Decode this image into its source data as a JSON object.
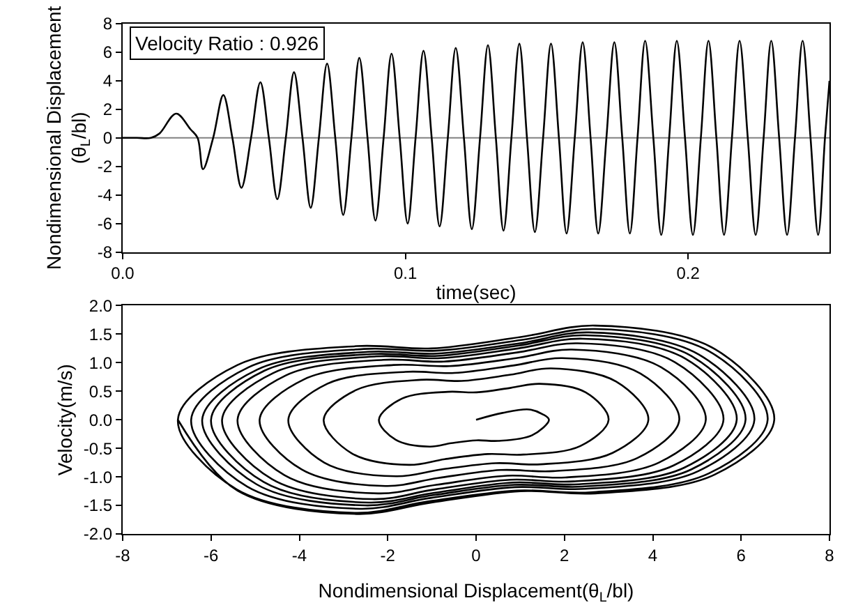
{
  "chart_data": [
    {
      "type": "line",
      "xlabel": "time(sec)",
      "ylabel": "Nondimensional Displacement(θ$_{L}$/bl)",
      "annotations": [
        "Velocity Ratio : 0.926"
      ],
      "xlim": [
        0,
        0.25
      ],
      "xticks": [
        {
          "value": 0,
          "label": "0.0"
        },
        0.1,
        0.2
      ],
      "ylim": [
        -8,
        8
      ],
      "yticks": [
        -8,
        -6,
        -4,
        -2,
        0,
        2,
        4,
        6,
        8
      ],
      "grid": false,
      "marker": "none",
      "line_style": "solid",
      "ref_lines": [
        {
          "axis": "y",
          "value": 0,
          "label": null,
          "color": "#808080"
        }
      ],
      "series": [
        {
          "color": "#000000",
          "x": [
            0,
            0.005,
            0.01,
            0.013,
            0.0189,
            0.024,
            0.0265,
            0.0284,
            0.032,
            0.0356,
            0.0388,
            0.042,
            0.0454,
            0.0487,
            0.0517,
            0.0547,
            0.0577,
            0.0606,
            0.0636,
            0.0665,
            0.0694,
            0.0723,
            0.0752,
            0.078,
            0.0809,
            0.0837,
            0.0866,
            0.0894,
            0.0923,
            0.0951,
            0.098,
            0.1008,
            0.1036,
            0.1064,
            0.1093,
            0.1121,
            0.115,
            0.1178,
            0.1207,
            0.1235,
            0.1264,
            0.1292,
            0.132,
            0.1347,
            0.1375,
            0.1403,
            0.143,
            0.1458,
            0.1487,
            0.1515,
            0.1543,
            0.157,
            0.1599,
            0.1627,
            0.1655,
            0.1682,
            0.1711,
            0.1739,
            0.1767,
            0.1794,
            0.1821,
            0.1848,
            0.1877,
            0.1905,
            0.1933,
            0.196,
            0.1989,
            0.2017,
            0.2045,
            0.2072,
            0.21,
            0.2127,
            0.2155,
            0.2182,
            0.2211,
            0.2239,
            0.2267,
            0.2294,
            0.2322,
            0.235,
            0.2378,
            0.2405,
            0.2433,
            0.246,
            0.2484,
            0.25
          ],
          "values": [
            0,
            0,
            0,
            0.3,
            1.7,
            0.6,
            0,
            -2.2,
            0,
            3.0,
            0,
            -3.5,
            0,
            3.9,
            0,
            -4.3,
            0,
            4.6,
            0,
            -4.9,
            0,
            5.2,
            0,
            -5.4,
            0,
            5.6,
            0,
            -5.8,
            0,
            5.9,
            0,
            -6.0,
            0,
            6.1,
            0,
            -6.2,
            0,
            6.3,
            0,
            -6.4,
            0,
            6.5,
            0,
            -6.5,
            0,
            6.6,
            0,
            -6.6,
            0,
            6.6,
            0,
            -6.7,
            0,
            6.7,
            0,
            -6.7,
            0,
            6.7,
            0,
            -6.7,
            0,
            6.8,
            0,
            -6.8,
            0,
            6.8,
            0,
            -6.8,
            0,
            6.8,
            0,
            -6.8,
            0,
            6.8,
            0,
            -6.8,
            0,
            6.8,
            0,
            -6.8,
            0,
            6.8,
            0,
            -6.8,
            0,
            4.0
          ]
        }
      ]
    },
    {
      "type": "line",
      "xlabel": "Nondimensional Displacement(θ$_{L}$/bl)",
      "ylabel": "Velocity(m/s)",
      "xlim": [
        -8,
        8
      ],
      "xticks": [
        -8,
        -6,
        -4,
        -2,
        0,
        2,
        4,
        6,
        8
      ],
      "ylim": [
        -2,
        2
      ],
      "yticks": [
        {
          "value": -2,
          "label": "-2.0"
        },
        -1.5,
        {
          "value": -1,
          "label": "-1.0"
        },
        -0.5,
        {
          "value": 0,
          "label": "0.0"
        },
        0.5,
        {
          "value": 1,
          "label": "1.0"
        },
        1.5,
        {
          "value": 2,
          "label": "2.0"
        }
      ],
      "grid": false,
      "marker": "none",
      "line_style": "solid",
      "series": [
        {
          "color": "#000000",
          "x": [
            0,
            0.6,
            1.2,
            1.5,
            1.65,
            1.27,
            0.5,
            0.01,
            -0.56,
            -1.05,
            -1.82,
            -2.2,
            -1.68,
            -0.64,
            0.01,
            0.79,
            1.44,
            2.48,
            3.0,
            2.36,
            1.07,
            0.26,
            -0.71,
            -1.52,
            -2.81,
            -3.45,
            -2.72,
            -1.25,
            -0.33,
            0.78,
            1.7,
            3.17,
            3.9,
            3.09,
            1.46,
            0.44,
            -0.79,
            -1.81,
            -3.44,
            -4.25,
            -3.37,
            -1.6,
            -0.49,
            0.84,
            1.95,
            3.72,
            4.6,
            3.65,
            1.75,
            0.56,
            -0.86,
            -2.05,
            -3.95,
            -4.9,
            -3.89,
            -1.87,
            -0.61,
            0.91,
            2.17,
            4.19,
            5.2,
            4.14,
            2.02,
            0.7,
            -0.9,
            -2.22,
            -4.34,
            -5.4,
            -4.3,
            -2.1,
            -0.73,
            0.93,
            2.3,
            4.5,
            5.6,
            4.47,
            2.2,
            0.78,
            -0.93,
            -2.35,
            -4.62,
            -5.75,
            -4.59,
            -2.26,
            -0.8,
            0.95,
            2.41,
            4.74,
            5.9,
            4.71,
            2.33,
            0.84,
            -0.94,
            -2.43,
            -4.81,
            -6.0,
            -4.79,
            -2.37,
            -0.86,
            0.96,
            2.47,
            4.89,
            6.1,
            4.87,
            2.41,
            0.87,
            -0.97,
            -2.51,
            -4.97,
            -6.2,
            -4.95,
            -2.45,
            -0.89,
            0.99,
            2.55,
            5.05,
            6.3,
            5.03,
            2.48,
            0.88,
            -1.03,
            -2.63,
            -5.18,
            -6.45,
            -5.15,
            -2.54,
            -0.9,
            1.05,
            2.69,
            5.3,
            6.6,
            5.27,
            2.6,
            0.93,
            -1.08,
            -2.75,
            -5.42,
            -6.75,
            -5.4,
            -2.7,
            -1.01,
            1.01,
            2.7,
            5.4,
            6.75,
            5.4,
            2.7,
            1.01,
            -1.01,
            -2.7,
            -5.4,
            -6.75
          ],
          "values": [
            0,
            0.12,
            0.18,
            0.1,
            0,
            -0.27,
            -0.37,
            -0.36,
            -0.41,
            -0.47,
            -0.35,
            0,
            0.37,
            0.49,
            0.48,
            0.56,
            0.63,
            0.48,
            0,
            -0.46,
            -0.61,
            -0.6,
            -0.69,
            -0.79,
            -0.59,
            0,
            0.52,
            0.7,
            0.68,
            0.79,
            0.9,
            0.67,
            0,
            -0.58,
            -0.78,
            -0.76,
            -0.87,
            -0.99,
            -0.75,
            0,
            0.63,
            0.84,
            0.82,
            0.95,
            1.08,
            0.81,
            0,
            -0.67,
            -0.9,
            -0.88,
            -1.02,
            -1.16,
            -0.87,
            0,
            0.71,
            0.96,
            0.94,
            1.08,
            1.23,
            0.92,
            0,
            -0.75,
            -1.01,
            -0.98,
            -1.14,
            -1.29,
            -0.97,
            0,
            0.78,
            1.05,
            1.02,
            1.18,
            1.34,
            1.01,
            0,
            -0.8,
            -1.08,
            -1.05,
            -1.22,
            -1.39,
            -1.04,
            0,
            0.82,
            1.11,
            1.08,
            1.25,
            1.42,
            1.07,
            0,
            -0.84,
            -1.13,
            -1.1,
            -1.28,
            -1.45,
            -1.09,
            0,
            0.86,
            1.15,
            1.12,
            1.3,
            1.48,
            1.11,
            0,
            -0.87,
            -1.17,
            -1.14,
            -1.32,
            -1.5,
            -1.13,
            0,
            0.88,
            1.19,
            1.16,
            1.34,
            1.53,
            1.14,
            0,
            -0.9,
            -1.21,
            -1.18,
            -1.37,
            -1.56,
            -1.17,
            0,
            0.92,
            1.24,
            1.21,
            1.4,
            1.59,
            1.19,
            0,
            -0.94,
            -1.27,
            -1.24,
            -1.43,
            -1.63,
            -1.22,
            0,
            0.96,
            1.29,
            1.25,
            1.45,
            1.65,
            1.24,
            0,
            -0.96,
            -1.29,
            -1.25,
            -1.45,
            -1.65,
            -1.24,
            0
          ]
        }
      ]
    }
  ]
}
